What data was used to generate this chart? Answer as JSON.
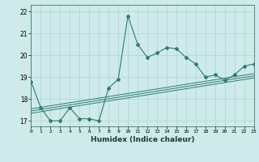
{
  "x": [
    0,
    1,
    2,
    3,
    4,
    5,
    6,
    7,
    8,
    9,
    10,
    11,
    12,
    13,
    14,
    15,
    16,
    17,
    18,
    19,
    20,
    21,
    22,
    23
  ],
  "y_main": [
    18.8,
    17.6,
    17.0,
    17.0,
    17.6,
    17.1,
    17.1,
    17.0,
    18.5,
    18.9,
    21.8,
    20.5,
    19.9,
    20.1,
    20.35,
    20.3,
    19.9,
    19.6,
    19.0,
    19.1,
    18.85,
    19.1,
    19.5,
    19.6
  ],
  "y_trend1": [
    17.55,
    17.62,
    17.69,
    17.76,
    17.83,
    17.9,
    17.97,
    18.04,
    18.11,
    18.18,
    18.25,
    18.32,
    18.39,
    18.46,
    18.53,
    18.6,
    18.67,
    18.74,
    18.81,
    18.88,
    18.95,
    19.02,
    19.09,
    19.16
  ],
  "y_trend2": [
    17.45,
    17.52,
    17.59,
    17.66,
    17.73,
    17.8,
    17.87,
    17.94,
    18.01,
    18.08,
    18.15,
    18.22,
    18.29,
    18.36,
    18.43,
    18.5,
    18.57,
    18.64,
    18.71,
    18.78,
    18.85,
    18.92,
    18.99,
    19.06
  ],
  "y_trend3": [
    17.35,
    17.42,
    17.49,
    17.56,
    17.63,
    17.7,
    17.77,
    17.84,
    17.91,
    17.98,
    18.05,
    18.12,
    18.19,
    18.26,
    18.33,
    18.4,
    18.47,
    18.54,
    18.61,
    18.68,
    18.75,
    18.82,
    18.89,
    18.96
  ],
  "xlim": [
    0,
    23
  ],
  "ylim": [
    16.75,
    22.3
  ],
  "yticks": [
    17,
    18,
    19,
    20,
    21,
    22
  ],
  "xticks": [
    0,
    1,
    2,
    3,
    4,
    5,
    6,
    7,
    8,
    9,
    10,
    11,
    12,
    13,
    14,
    15,
    16,
    17,
    18,
    19,
    20,
    21,
    22,
    23
  ],
  "xlabel": "Humidex (Indice chaleur)",
  "line_color": "#2d7d6e",
  "bg_color": "#ceeaea",
  "grid_color": "#afd4d4"
}
